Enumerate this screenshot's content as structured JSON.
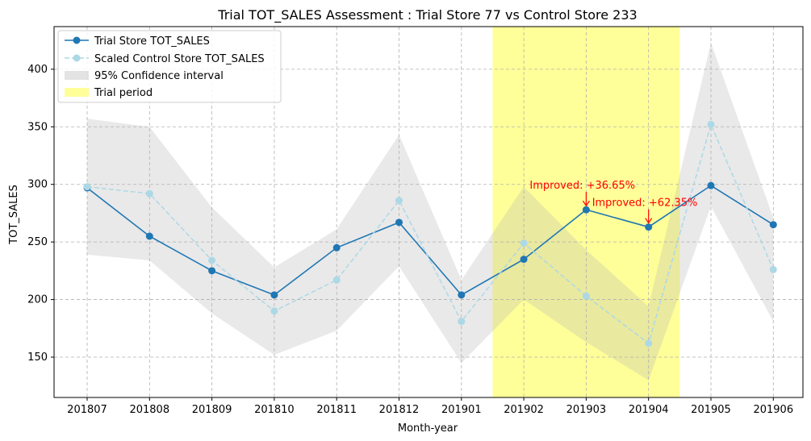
{
  "chart_data": {
    "type": "line",
    "title": "Trial TOT_SALES Assessment : Trial Store 77 vs Control Store 233",
    "xlabel": "Month-year",
    "ylabel": "TOT_SALES",
    "categories": [
      "201807",
      "201808",
      "201809",
      "201810",
      "201811",
      "201812",
      "201901",
      "201902",
      "201903",
      "201904",
      "201905",
      "201906"
    ],
    "ylim": [
      115,
      437
    ],
    "yticks": [
      150,
      200,
      250,
      300,
      350,
      400
    ],
    "grid": true,
    "legend_position": "top-left",
    "series": [
      {
        "name": "Trial Store TOT_SALES",
        "style": "solid",
        "marker": "circle",
        "color": "#1f77b4",
        "values": [
          297,
          255,
          225,
          204,
          245,
          267,
          204,
          235,
          278,
          263,
          299,
          265
        ]
      },
      {
        "name": "Scaled Control Store TOT_SALES",
        "style": "dashed",
        "marker": "circle",
        "color": "#add8e6",
        "values": [
          298,
          292,
          234,
          190,
          217,
          286,
          181,
          249,
          203,
          162,
          352,
          226
        ]
      }
    ],
    "confidence_band": {
      "name": "95% Confidence interval",
      "color": "#d3d3d3",
      "lower": [
        239,
        234,
        188,
        152,
        173,
        229,
        145,
        200,
        163,
        130,
        281,
        181
      ],
      "upper": [
        357,
        350,
        280,
        228,
        261,
        343,
        217,
        298,
        243,
        194,
        423,
        271
      ]
    },
    "trial_period": {
      "name": "Trial period",
      "color": "#ffff99",
      "start_index": 6.5,
      "end_index": 9.5
    },
    "annotations": [
      {
        "text": "Improved: +36.65%",
        "category": "201903",
        "value": 278,
        "color": "#ff0000"
      },
      {
        "text": "Improved: +62.35%",
        "category": "201904",
        "value": 263,
        "color": "#ff0000"
      }
    ]
  }
}
